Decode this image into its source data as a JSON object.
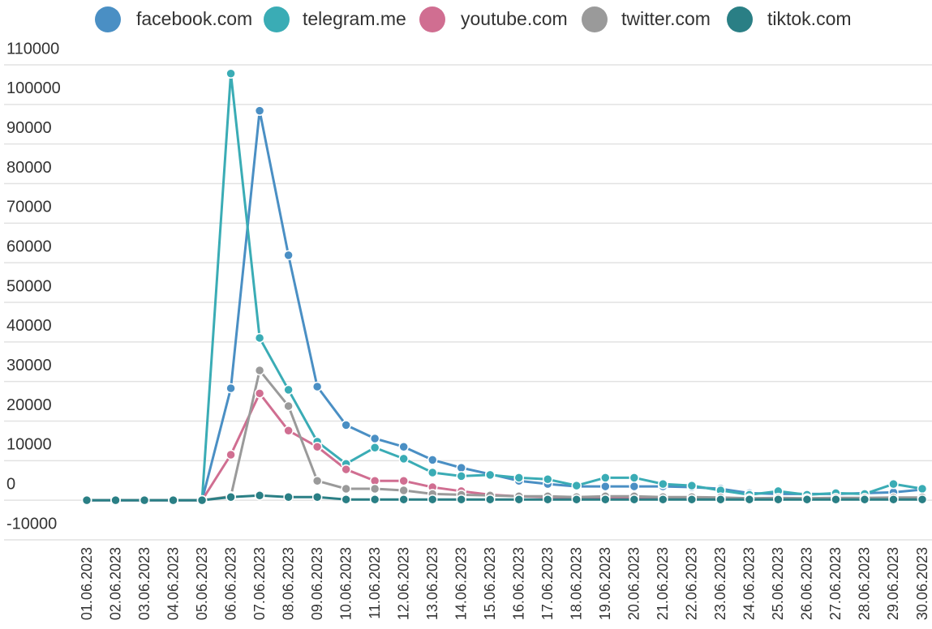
{
  "chart_data": {
    "type": "line",
    "categories": [
      "01.06.2023",
      "02.06.2023",
      "03.06.2023",
      "04.06.2023",
      "05.06.2023",
      "06.06.2023",
      "07.06.2023",
      "08.06.2023",
      "09.06.2023",
      "10.06.2023",
      "11.06.2023",
      "12.06.2023",
      "13.06.2023",
      "14.06.2023",
      "15.06.2023",
      "16.06.2023",
      "17.06.2023",
      "18.06.2023",
      "19.06.2023",
      "20.06.2023",
      "21.06.2023",
      "22.06.2023",
      "23.06.2023",
      "24.06.2023",
      "25.06.2023",
      "26.06.2023",
      "27.06.2023",
      "28.06.2023",
      "29.06.2023",
      "30.06.2023"
    ],
    "series": [
      {
        "name": "facebook.com",
        "color": "#4a8fc4",
        "values": [
          0,
          0,
          0,
          0,
          0,
          28300,
          98400,
          61900,
          28700,
          19000,
          15600,
          13500,
          10200,
          8200,
          6600,
          4900,
          4100,
          3500,
          3500,
          3500,
          3500,
          3300,
          2900,
          1800,
          1600,
          1600,
          1600,
          1800,
          2000,
          2700
        ]
      },
      {
        "name": "telegram.me",
        "color": "#3aacb5",
        "values": [
          0,
          0,
          0,
          0,
          0,
          107800,
          41000,
          27900,
          14800,
          9200,
          13300,
          10500,
          7000,
          6100,
          6400,
          5700,
          5300,
          3700,
          5700,
          5700,
          4100,
          3700,
          2500,
          1400,
          2300,
          1400,
          1800,
          1600,
          4100,
          2900
        ]
      },
      {
        "name": "youtube.com",
        "color": "#d06e91",
        "values": [
          0,
          0,
          0,
          0,
          0,
          11500,
          27000,
          17600,
          13500,
          7800,
          4900,
          4900,
          3300,
          2300,
          1400,
          1000,
          800,
          700,
          700,
          700,
          600,
          600,
          500,
          400,
          400,
          400,
          400,
          400,
          500,
          500
        ]
      },
      {
        "name": "twitter.com",
        "color": "#9a9a9a",
        "values": [
          0,
          0,
          0,
          0,
          0,
          1000,
          32800,
          23800,
          4900,
          2900,
          2900,
          2500,
          1600,
          1400,
          1200,
          1000,
          1000,
          800,
          1000,
          1000,
          800,
          800,
          700,
          500,
          600,
          500,
          600,
          600,
          700,
          700
        ]
      },
      {
        "name": "tiktok.com",
        "color": "#2a7f85",
        "values": [
          0,
          0,
          0,
          0,
          0,
          800,
          1200,
          800,
          800,
          200,
          200,
          200,
          200,
          200,
          200,
          200,
          200,
          200,
          200,
          200,
          200,
          200,
          200,
          200,
          200,
          200,
          200,
          200,
          200,
          200
        ]
      }
    ],
    "ylim": [
      -10000,
      110000
    ],
    "yticks": [
      -10000,
      0,
      10000,
      20000,
      30000,
      40000,
      50000,
      60000,
      70000,
      80000,
      90000,
      100000,
      110000
    ],
    "grid": true,
    "legend": "top"
  }
}
